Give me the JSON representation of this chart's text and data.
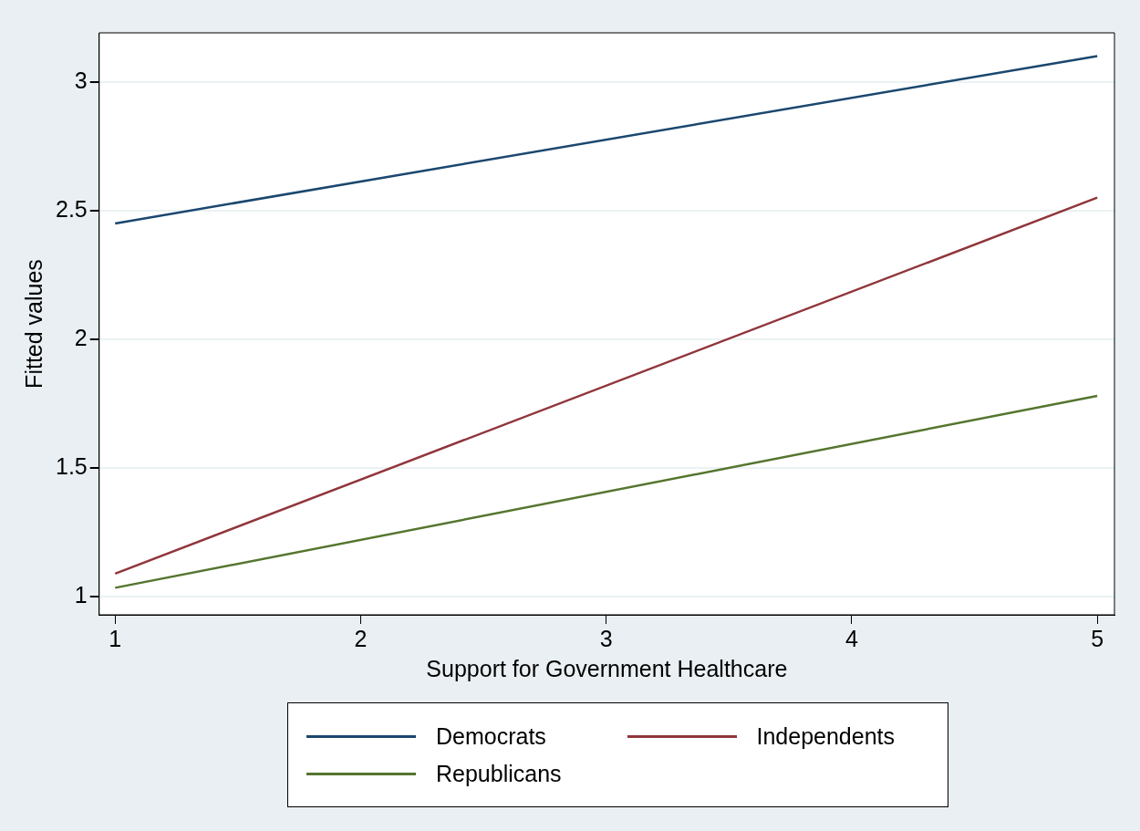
{
  "chart_data": {
    "type": "line",
    "xlabel": "Support for Government Healthcare",
    "ylabel": "Fitted values",
    "x": [
      1,
      5
    ],
    "series": [
      {
        "name": "Democrats",
        "color": "#1a476f",
        "values": [
          2.45,
          3.1
        ]
      },
      {
        "name": "Independents",
        "color": "#90353b",
        "values": [
          1.09,
          2.55
        ]
      },
      {
        "name": "Republicans",
        "color": "#55752f",
        "values": [
          1.035,
          1.78
        ]
      }
    ],
    "xlim": [
      0.935,
      5.07
    ],
    "xticks": [
      1,
      2,
      3,
      4,
      5
    ],
    "ylim": [
      0.93,
      3.19
    ],
    "yticks": [
      1,
      1.5,
      2,
      2.5,
      3
    ],
    "grid": "y",
    "legend": "bottom",
    "marker": "none",
    "line_style": "solid"
  }
}
